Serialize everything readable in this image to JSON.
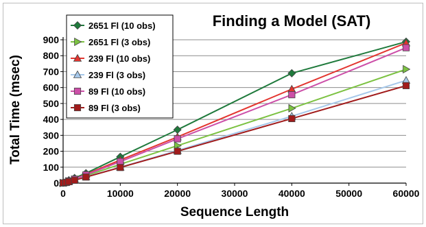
{
  "chart_data": {
    "type": "line",
    "title": "Finding a Model (SAT)",
    "xlabel": "Sequence Length",
    "ylabel": "Total Time (msec)",
    "xlim": [
      0,
      60000
    ],
    "ylim": [
      0,
      900
    ],
    "x_ticks": [
      "0",
      "10000",
      "20000",
      "30000",
      "40000",
      "50000",
      "60000"
    ],
    "y_ticks": [
      "0",
      "100",
      "200",
      "300",
      "400",
      "500",
      "600",
      "700",
      "800",
      "900"
    ],
    "grid": "horizontal",
    "legend_position": "top-left",
    "series": [
      {
        "name": "2651 Fl (10 obs)",
        "color": "#1f7a3c",
        "marker": "diamond",
        "points": [
          [
            0,
            2
          ],
          [
            500,
            8
          ],
          [
            1000,
            18
          ],
          [
            2000,
            32
          ],
          [
            4000,
            62
          ],
          [
            10000,
            165
          ],
          [
            20000,
            335
          ],
          [
            40000,
            690
          ],
          [
            60000,
            888
          ]
        ]
      },
      {
        "name": "2651 Fl (3 obs)",
        "color": "#7cc242",
        "marker": "triangle-right",
        "points": [
          [
            0,
            1
          ],
          [
            500,
            5
          ],
          [
            1000,
            12
          ],
          [
            2000,
            22
          ],
          [
            4000,
            46
          ],
          [
            10000,
            118
          ],
          [
            20000,
            235
          ],
          [
            40000,
            470
          ],
          [
            60000,
            715
          ]
        ]
      },
      {
        "name": "239 Fl (10 obs)",
        "color": "#e3352f",
        "marker": "triangle-up",
        "points": [
          [
            0,
            1
          ],
          [
            500,
            6
          ],
          [
            1000,
            14
          ],
          [
            2000,
            26
          ],
          [
            4000,
            55
          ],
          [
            10000,
            145
          ],
          [
            20000,
            290
          ],
          [
            40000,
            590
          ],
          [
            60000,
            880
          ]
        ]
      },
      {
        "name": "239 Fl (3 obs)",
        "color": "#a6c8ea",
        "marker": "triangle-up",
        "points": [
          [
            0,
            1
          ],
          [
            500,
            4
          ],
          [
            1000,
            10
          ],
          [
            2000,
            19
          ],
          [
            4000,
            40
          ],
          [
            10000,
            100
          ],
          [
            20000,
            205
          ],
          [
            40000,
            420
          ],
          [
            60000,
            645
          ]
        ]
      },
      {
        "name": "89 Fl (10 obs)",
        "color": "#cc4fa8",
        "marker": "square",
        "points": [
          [
            0,
            1
          ],
          [
            500,
            5
          ],
          [
            1000,
            13
          ],
          [
            2000,
            25
          ],
          [
            4000,
            52
          ],
          [
            10000,
            135
          ],
          [
            20000,
            278
          ],
          [
            40000,
            555
          ],
          [
            60000,
            850
          ]
        ]
      },
      {
        "name": "89 Fl (3 obs)",
        "color": "#a11b1b",
        "marker": "square",
        "points": [
          [
            0,
            1
          ],
          [
            500,
            4
          ],
          [
            1000,
            9
          ],
          [
            2000,
            18
          ],
          [
            4000,
            38
          ],
          [
            10000,
            98
          ],
          [
            20000,
            200
          ],
          [
            40000,
            405
          ],
          [
            60000,
            612
          ]
        ]
      }
    ]
  }
}
